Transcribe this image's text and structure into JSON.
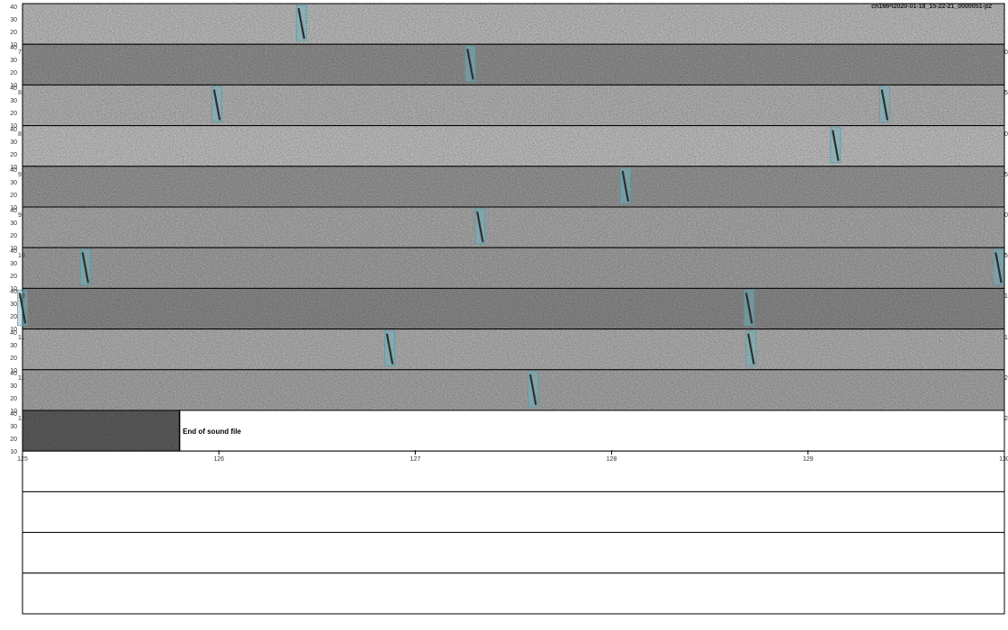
{
  "file_label": "ch1MPI2020-01-18_15-22-21_0000051-p2",
  "end_of_file_text": "End of sound file",
  "colors": {
    "spectrogram_light": "#b9b9b9",
    "spectrogram_dark": "#868686",
    "end_block": "#5c5c5c",
    "detection_fill": "#6fb5c2",
    "detection_stroke": "#4f9aa8",
    "call_stroke": "#2a2f33",
    "frame": "#000000"
  },
  "chart_data": {
    "type": "heatmap",
    "y_ticks": [
      "40",
      "30",
      "20",
      "10"
    ],
    "ylim": [
      10,
      45
    ],
    "rows": [
      {
        "left_label": "",
        "right_label": "",
        "detections": [
          126.42
        ]
      },
      {
        "left_label": "7",
        "right_label": "0",
        "detections": [
          127.28
        ]
      },
      {
        "left_label": "8",
        "right_label": "5",
        "detections": [
          125.99,
          129.39
        ]
      },
      {
        "left_label": "8",
        "right_label": "0",
        "detections": [
          129.14
        ]
      },
      {
        "left_label": "9",
        "right_label": "5",
        "detections": [
          128.07
        ]
      },
      {
        "left_label": "9",
        "right_label": "00",
        "detections": [
          127.33
        ]
      },
      {
        "left_label": "10",
        "right_label": "5",
        "detections": [
          125.32,
          129.97
        ]
      },
      {
        "left_label": "10",
        "right_label": "10",
        "detections": [
          125.0,
          128.7
        ]
      },
      {
        "left_label": "11",
        "right_label": "15",
        "detections": [
          126.87,
          128.71
        ]
      },
      {
        "left_label": "11",
        "right_label": "20",
        "detections": [
          127.6
        ]
      },
      {
        "left_label": "12",
        "right_label": "25",
        "end_of_file": 125.8,
        "detections": []
      }
    ],
    "x_ticks": [
      "125",
      "126",
      "127",
      "128",
      "129",
      "130"
    ],
    "xlim": [
      125,
      130
    ],
    "empty_rows": 4
  }
}
